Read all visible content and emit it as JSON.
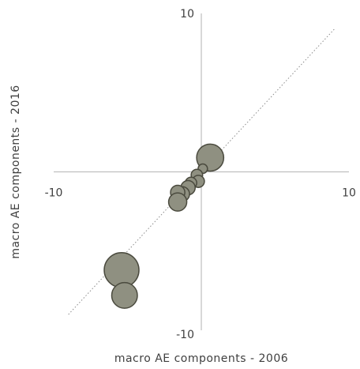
{
  "chart_data": {
    "type": "scatter",
    "xlabel": "macro AE components - 2006",
    "ylabel": "macro AE components - 2016",
    "xlim": [
      -10,
      10
    ],
    "ylim": [
      -10,
      10
    ],
    "x_ticks": [
      "-10",
      "10"
    ],
    "y_ticks": [
      "10",
      "-10"
    ],
    "reference_line": "y = x",
    "grid": false,
    "bubble_color": "#8f9081",
    "bubble_edge_color": "#4a4a3e",
    "series": [
      {
        "points": [
          {
            "x": 0.6,
            "y": 0.9,
            "size": 1.0
          },
          {
            "x": 0.1,
            "y": 0.2,
            "size": 0.12
          },
          {
            "x": -0.3,
            "y": -0.2,
            "size": 0.18
          },
          {
            "x": -0.2,
            "y": -0.6,
            "size": 0.2
          },
          {
            "x": -0.7,
            "y": -0.7,
            "size": 0.18
          },
          {
            "x": -0.9,
            "y": -1.0,
            "size": 0.28
          },
          {
            "x": -1.3,
            "y": -1.4,
            "size": 0.3
          },
          {
            "x": -1.6,
            "y": -1.3,
            "size": 0.28
          },
          {
            "x": -1.6,
            "y": -1.9,
            "size": 0.45
          },
          {
            "x": -5.4,
            "y": -6.2,
            "size": 1.65
          },
          {
            "x": -5.2,
            "y": -7.8,
            "size": 0.9
          }
        ]
      }
    ]
  }
}
